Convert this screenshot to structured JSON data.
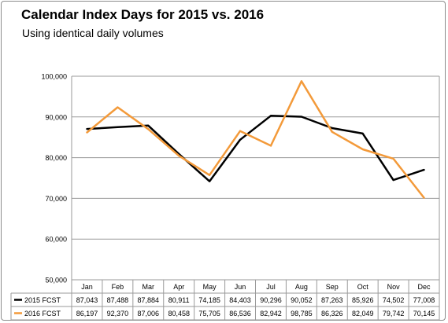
{
  "chart_data": {
    "type": "line",
    "title": "Calendar Index Days for 2015 vs. 2016",
    "subtitle": "Using identical daily volumes",
    "categories": [
      "Jan",
      "Feb",
      "Mar",
      "Apr",
      "May",
      "Jun",
      "Jul",
      "Aug",
      "Sep",
      "Oct",
      "Nov",
      "Dec"
    ],
    "series": [
      {
        "name": "2015 FCST",
        "color": "#000000",
        "values": [
          87043,
          87488,
          87884,
          80911,
          74185,
          84403,
          90296,
          90052,
          87263,
          85926,
          74502,
          77008
        ],
        "labels": [
          "87,043",
          "87,488",
          "87,884",
          "80,911",
          "74,185",
          "84,403",
          "90,296",
          "90,052",
          "87,263",
          "85,926",
          "74,502",
          "77,008"
        ]
      },
      {
        "name": "2016 FCST",
        "color": "#f39a3a",
        "values": [
          86197,
          92370,
          87006,
          80458,
          75705,
          86536,
          82942,
          98785,
          86326,
          82049,
          79742,
          70145
        ],
        "labels": [
          "86,197",
          "92,370",
          "87,006",
          "80,458",
          "75,705",
          "86,536",
          "82,942",
          "98,785",
          "86,326",
          "82,049",
          "79,742",
          "70,145"
        ]
      }
    ],
    "ylim": [
      50000,
      100000
    ],
    "yticks": [
      50000,
      60000,
      70000,
      80000,
      90000,
      100000
    ],
    "ytick_labels": [
      "50,000",
      "60,000",
      "70,000",
      "80,000",
      "90,000",
      "100,000"
    ],
    "grid": true,
    "legend": "data-table"
  }
}
